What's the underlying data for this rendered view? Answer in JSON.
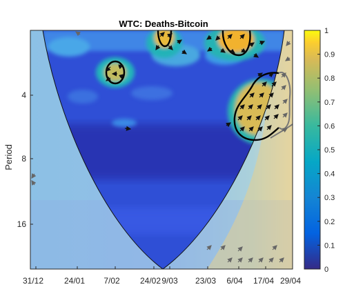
{
  "chart_data": {
    "type": "heatmap",
    "title": "WTC: Deaths-Bitcoin",
    "xlabel": "",
    "ylabel": "Period",
    "x_tick_labels": [
      "31/12",
      "24/01",
      "7/02",
      "24/02",
      "9/03",
      "23/03",
      "6/04",
      "17/04",
      "29/04"
    ],
    "y_tick_labels": [
      "4",
      "8",
      "16"
    ],
    "y_scale": "log2",
    "colorbar": {
      "range": [
        0,
        1
      ],
      "ticks": [
        "0",
        "0.1",
        "0.2",
        "0.3",
        "0.4",
        "0.5",
        "0.6",
        "0.7",
        "0.8",
        "0.9",
        "1"
      ],
      "colormap": "parula"
    },
    "significant_regions": [
      {
        "x_label_center": "7/02",
        "period_center": 3.3,
        "coherence": 0.8
      },
      {
        "x_label_center": "9/03",
        "period_center": 1.6,
        "coherence": 0.9
      },
      {
        "x_label_center": "6/04",
        "period_center": 1.7,
        "coherence": 0.95
      },
      {
        "x_label_center": "17/04",
        "period_center": 4.8,
        "coherence": 0.8
      }
    ],
    "cone_of_influence": true,
    "phase_arrows": true
  }
}
